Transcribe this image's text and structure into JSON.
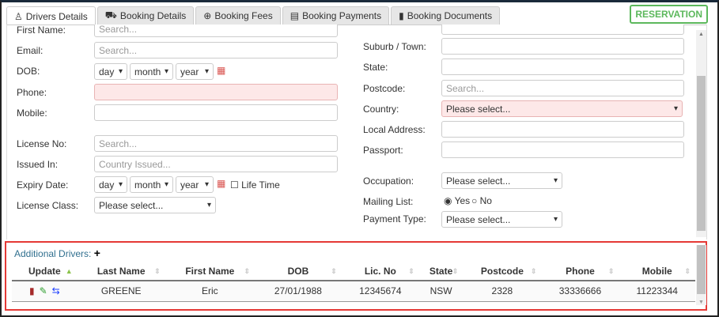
{
  "tabs": [
    {
      "label": "Drivers Details",
      "icon": "user-icon",
      "active": true
    },
    {
      "label": "Booking Details",
      "icon": "car-icon"
    },
    {
      "label": "Booking Fees",
      "icon": "plus-circle-icon"
    },
    {
      "label": "Booking Payments",
      "icon": "credit-card-icon"
    },
    {
      "label": "Booking Documents",
      "icon": "file-icon"
    }
  ],
  "reservation": "RESERVATION",
  "left": {
    "first_name": "First Name:",
    "first_name_ph": "Search...",
    "email": "Email:",
    "email_ph": "Search...",
    "dob": "DOB:",
    "day": "day",
    "month": "month",
    "year": "year",
    "phone": "Phone:",
    "mobile": "Mobile:",
    "license_no": "License No:",
    "license_ph": "Search...",
    "issued_in": "Issued In:",
    "issued_ph": "Country Issued...",
    "expiry": "Expiry Date:",
    "lifetime": "Life Time",
    "license_class": "License Class:",
    "please_select": "Please select..."
  },
  "right": {
    "suburb": "Suburb / Town:",
    "state": "State:",
    "postcode": "Postcode:",
    "postcode_ph": "Search...",
    "country": "Country:",
    "local_address": "Local Address:",
    "passport": "Passport:",
    "occupation": "Occupation:",
    "mailing_list": "Mailing List:",
    "yes": "Yes",
    "no": "No",
    "payment_type": "Payment Type:",
    "please_select": "Please select..."
  },
  "additional": {
    "title": "Additional Drivers:",
    "columns": [
      "Update",
      "Last Name",
      "First Name",
      "DOB",
      "Lic. No",
      "State",
      "Postcode",
      "Phone",
      "Mobile"
    ],
    "rows": [
      {
        "last": "GREENE",
        "first": "Eric",
        "dob": "27/01/1988",
        "lic": "12345674",
        "state": "NSW",
        "postcode": "2328",
        "phone": "33336666",
        "mobile": "11223344"
      }
    ]
  },
  "colors": {
    "accent_green": "#5cb85c",
    "highlight_red": "#e53935",
    "error_bg": "#fde8e8"
  }
}
